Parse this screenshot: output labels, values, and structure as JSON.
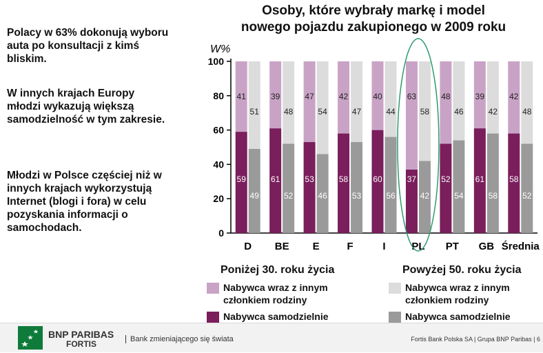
{
  "left_text": {
    "p1": "Polacy w 63% dokonują wyboru auta po konsultacji z kimś bliskim.",
    "p2": "W innych krajach Europy młodzi wykazują większą samodzielność w tym zakresie.",
    "p3": "Młodzi w Polsce częściej niż w innych krajach wykorzystują Internet (blogi i fora) w celu pozyskania informacji o samochodach."
  },
  "chart_data": {
    "type": "bar",
    "stacked": true,
    "title_line1": "Osoby, które wybrały markę i model",
    "title_line2": "nowego pojazdu zakupionego w 2009 roku",
    "ylabel": "W%",
    "ylim": [
      0,
      100
    ],
    "yticks": [
      0,
      20,
      40,
      60,
      80,
      100
    ],
    "categories": [
      "D",
      "BE",
      "E",
      "F",
      "I",
      "PL",
      "PT",
      "GB",
      "Średnia"
    ],
    "highlight_category": "PL",
    "groups": [
      {
        "name": "Poniżej 30. roku życia",
        "series": [
          {
            "name": "Nabywca samodzielnie",
            "values": [
              59,
              61,
              53,
              58,
              60,
              37,
              52,
              61,
              58
            ],
            "color": "#7a1e5c"
          },
          {
            "name": "Nabywca wraz z innym członkiem rodziny",
            "values": [
              41,
              39,
              47,
              42,
              40,
              63,
              48,
              39,
              42
            ],
            "color": "#c9a3c6"
          }
        ]
      },
      {
        "name": "Powyżej 50. roku życia",
        "series": [
          {
            "name": "Nabywca samodzielnie",
            "values": [
              49,
              52,
              46,
              53,
              56,
              42,
              54,
              58,
              52
            ],
            "color": "#9a9a9a"
          },
          {
            "name": "Nabywca wraz z innym członkiem rodziny",
            "values": [
              51,
              48,
              54,
              47,
              44,
              58,
              46,
              42,
              48
            ],
            "color": "#dcdcdc"
          }
        ]
      }
    ],
    "legend_placement": "bottom",
    "grid": false
  },
  "legend": {
    "group1_title": "Poniżej 30. roku życia",
    "group2_title": "Powyżej 50. roku życia",
    "item_with_family_line1": "Nabywca wraz z innym",
    "item_with_family_line2": "członkiem rodziny",
    "item_alone": "Nabywca samodzielnie"
  },
  "footer": {
    "logo_line1": "BNP PARIBAS",
    "logo_line2": "FORTIS",
    "tagline": "Bank zmieniającego się świata",
    "right_text": "Fortis Bank Polska SA  |  Grupa BNP Paribas  |  6"
  },
  "icons": [
    "bnp-paribas-stars-logo-icon"
  ]
}
